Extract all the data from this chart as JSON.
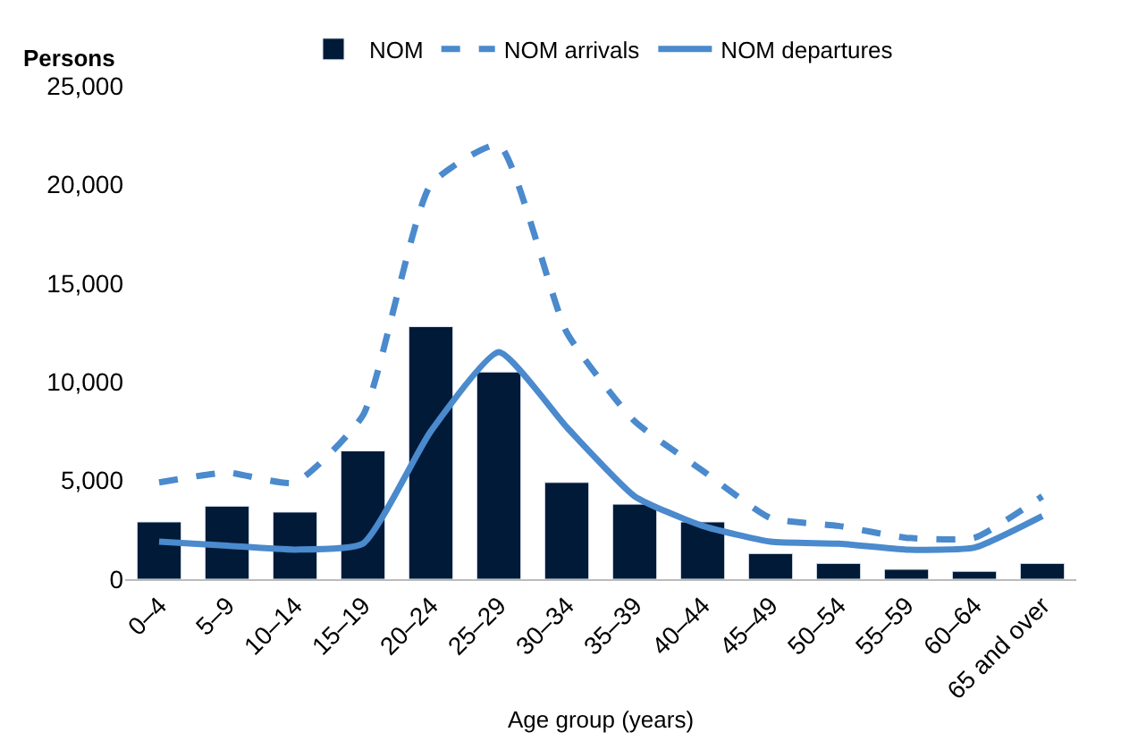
{
  "chart_data": {
    "type": "bar",
    "ylabel": "Persons",
    "xlabel": "Age group (years)",
    "categories": [
      "0–4",
      "5–9",
      "10–14",
      "15–19",
      "20–24",
      "25–29",
      "30–34",
      "35–39",
      "40–44",
      "45–49",
      "50–54",
      "55–59",
      "60–64",
      "65 and over"
    ],
    "series": [
      {
        "name": "NOM",
        "color": "#001a38",
        "values": [
          2900,
          3700,
          3400,
          6500,
          12800,
          10500,
          4900,
          3800,
          2900,
          1300,
          800,
          500,
          400,
          800
        ]
      },
      {
        "name": "NOM arrivals",
        "type": "line",
        "line_style": "dashed",
        "color": "#4a8acd",
        "values": [
          4900,
          5400,
          4900,
          8300,
          20000,
          22000,
          12500,
          8000,
          5500,
          3100,
          2700,
          2100,
          2100,
          4200
        ]
      },
      {
        "name": "NOM departures",
        "type": "line",
        "line_style": "solid",
        "color": "#4a8acd",
        "values": [
          1900,
          1700,
          1500,
          1800,
          7500,
          11500,
          7700,
          4200,
          2700,
          1900,
          1800,
          1500,
          1600,
          3200
        ]
      }
    ],
    "ylim": [
      0,
      25000
    ],
    "yticks": [
      {
        "value": 0,
        "label": "0"
      },
      {
        "value": 5000,
        "label": "5,000"
      },
      {
        "value": 10000,
        "label": "10,000"
      },
      {
        "value": 15000,
        "label": "15,000"
      },
      {
        "value": 20000,
        "label": "20,000"
      },
      {
        "value": 25000,
        "label": "25,000"
      }
    ],
    "legend": "top"
  }
}
